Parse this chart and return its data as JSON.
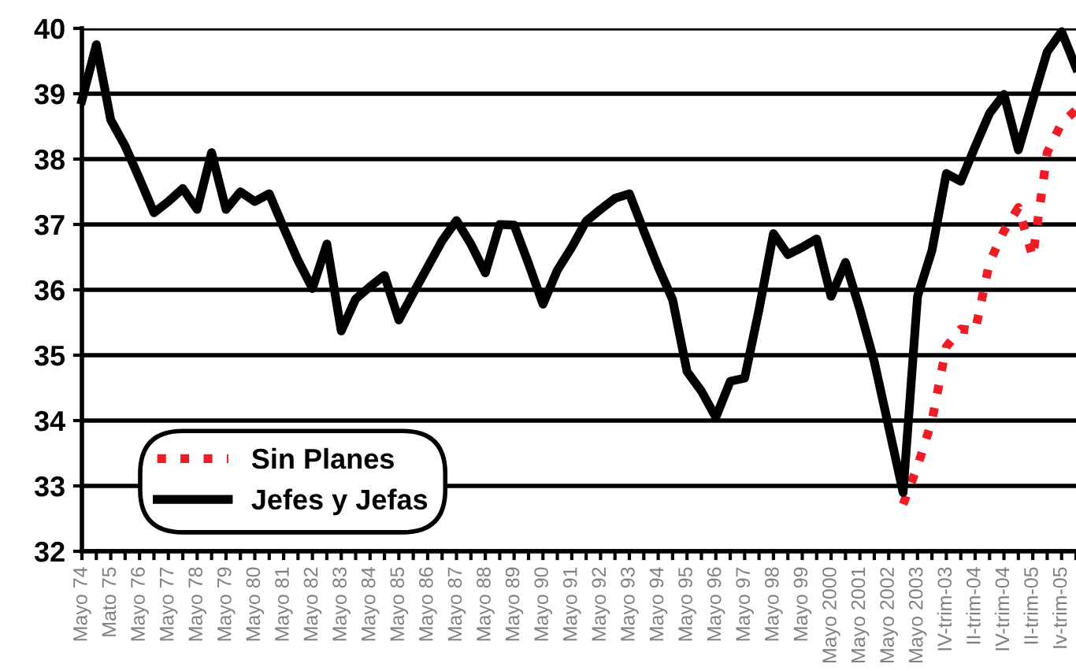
{
  "chart_data": {
    "type": "line",
    "categories": [
      "Mayo 74",
      null,
      "Mato 75",
      null,
      "Mayo 76",
      null,
      "Mayo 77",
      null,
      "Mayo 78",
      null,
      "Mayo 79",
      null,
      "Mayo 80",
      null,
      "Mayo 81",
      null,
      "Mayo 82",
      null,
      "Mayo 83",
      null,
      "Mayo 84",
      null,
      "Mayo 85",
      null,
      "Mayo 86",
      null,
      "Mayo 87",
      null,
      "Mayo 88",
      null,
      "Mayo 89",
      null,
      "Mayo 90",
      null,
      "Mayo 91",
      null,
      "Mayo 92",
      null,
      "Mayo 93",
      null,
      "Mayo 94",
      null,
      "Mayo 95",
      null,
      "Mayo 96",
      null,
      "Mayo 97",
      null,
      "Mayo 98",
      null,
      "Mayo 99",
      null,
      "Mayo 2000",
      null,
      "Mayo 2001",
      null,
      "Mayo 2002",
      null,
      "Mayo 2003",
      null,
      "IV-trim-03",
      null,
      "II-trim-04",
      null,
      "IV-trim-04",
      null,
      "II-trim-05",
      null,
      "Iv-trim-05",
      null
    ],
    "series": [
      {
        "name": "Sin Planes",
        "color": "#ee1c25",
        "line_style": "dotted",
        "values": [
          null,
          null,
          null,
          null,
          null,
          null,
          null,
          null,
          null,
          null,
          null,
          null,
          null,
          null,
          null,
          null,
          null,
          null,
          null,
          null,
          null,
          null,
          null,
          null,
          null,
          null,
          null,
          null,
          null,
          null,
          null,
          null,
          null,
          null,
          null,
          null,
          null,
          null,
          null,
          null,
          null,
          null,
          null,
          null,
          null,
          null,
          null,
          null,
          null,
          null,
          null,
          null,
          null,
          null,
          null,
          null,
          null,
          32.72,
          33.3,
          34.0,
          35.13,
          35.4,
          35.37,
          36.42,
          36.9,
          37.26,
          36.5,
          38.1,
          38.55,
          38.75
        ]
      },
      {
        "name": "Jefes y Jefas",
        "color": "#000000",
        "line_style": "solid",
        "values": [
          38.9,
          39.75,
          38.6,
          38.2,
          37.7,
          37.18,
          37.35,
          37.55,
          37.23,
          38.1,
          37.23,
          37.5,
          37.35,
          37.47,
          36.95,
          36.45,
          36.02,
          36.7,
          35.37,
          35.86,
          36.05,
          36.22,
          35.54,
          35.95,
          36.35,
          36.75,
          37.06,
          36.7,
          36.26,
          37.0,
          36.99,
          36.4,
          35.78,
          36.3,
          36.65,
          37.05,
          37.23,
          37.4,
          37.47,
          36.9,
          36.35,
          35.85,
          34.75,
          34.45,
          34.05,
          34.6,
          34.65,
          35.7,
          36.86,
          36.54,
          36.65,
          36.78,
          35.9,
          36.42,
          35.7,
          34.9,
          33.9,
          32.9,
          35.9,
          36.6,
          37.78,
          37.66,
          38.19,
          38.7,
          38.99,
          38.14,
          38.9,
          39.64,
          39.95,
          39.4
        ]
      }
    ],
    "ylim": [
      32,
      40
    ],
    "yticks": [
      32,
      33,
      34,
      35,
      36,
      37,
      38,
      39,
      40
    ],
    "grid": "y",
    "legend": "bottom left",
    "marker": "none"
  }
}
